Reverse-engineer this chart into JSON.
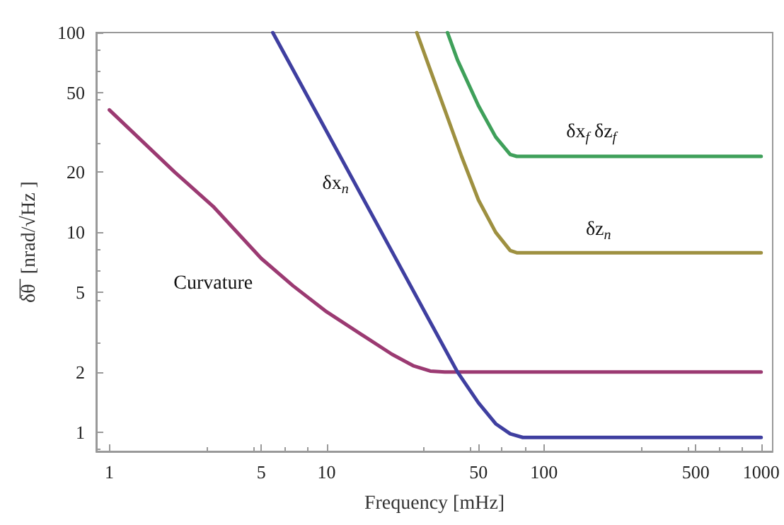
{
  "chart_data": {
    "type": "line",
    "xlabel": "Frequency [mHz]",
    "ylabel": "δ̅θ̅  [nrad/√Hz ]",
    "log": "xy",
    "grid": false,
    "legend": false,
    "marker": "none",
    "line_style": "solid",
    "xlim": [
      0.87,
      1130
    ],
    "ylim": [
      0.8,
      100
    ],
    "xticks": [
      1,
      5,
      10,
      50,
      100,
      500,
      1000
    ],
    "yticks": [
      1,
      2,
      5,
      10,
      20,
      50,
      100
    ],
    "series": [
      {
        "name": "Curvature",
        "color": "#9b3a72",
        "x": [
          1,
          2,
          3,
          5,
          7,
          10,
          15,
          20,
          25,
          30,
          35,
          1000
        ],
        "values": [
          41,
          20,
          13.5,
          7.4,
          5.4,
          4.0,
          3.0,
          2.45,
          2.15,
          2.02,
          2.0,
          2.0
        ]
      },
      {
        "name": "δx$_{n}$",
        "color": "#3f3fa0",
        "x": [
          5.65,
          10,
          20,
          30,
          40,
          50,
          60,
          70,
          80,
          1000
        ],
        "values": [
          100,
          32,
          8.0,
          3.55,
          2.0,
          1.4,
          1.1,
          0.98,
          0.94,
          0.94
        ]
      },
      {
        "name": "δz$_{n}$",
        "color": "#9e9040",
        "x": [
          26,
          30,
          35,
          41.8,
          50,
          60,
          70,
          75,
          1000
        ],
        "values": [
          100,
          65,
          41,
          24,
          14.5,
          10,
          8.1,
          7.9,
          7.9
        ]
      },
      {
        "name": "δx$_{f}$ δz$_{f}$",
        "color": "#3fa05a",
        "x": [
          36,
          40,
          50,
          60,
          70,
          75,
          1000
        ],
        "values": [
          100,
          73,
          43,
          30,
          24.5,
          24,
          24
        ]
      }
    ]
  }
}
